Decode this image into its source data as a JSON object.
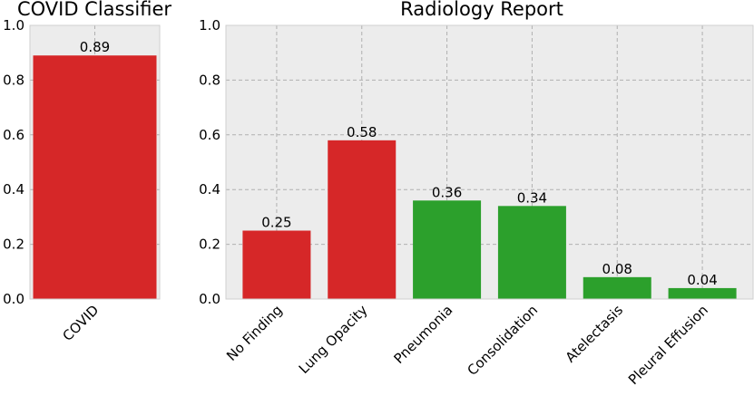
{
  "chart_data": [
    {
      "type": "bar",
      "title": "COVID Classifier",
      "categories": [
        "COVID"
      ],
      "values": [
        0.89
      ],
      "value_labels": [
        "0.89"
      ],
      "bar_colors": [
        "#d62728"
      ],
      "ylim": [
        0,
        1.0
      ],
      "yticks": [
        "0.0",
        "0.2",
        "0.4",
        "0.6",
        "0.8",
        "1.0"
      ],
      "grid": true
    },
    {
      "type": "bar",
      "title": "Radiology Report",
      "categories": [
        "No Finding",
        "Lung Opacity",
        "Pneumonia",
        "Consolidation",
        "Atelectasis",
        "Pleural Effusion"
      ],
      "values": [
        0.25,
        0.58,
        0.36,
        0.34,
        0.08,
        0.04
      ],
      "value_labels": [
        "0.25",
        "0.58",
        "0.36",
        "0.34",
        "0.08",
        "0.04"
      ],
      "bar_colors": [
        "#d62728",
        "#d62728",
        "#2ca02c",
        "#2ca02c",
        "#2ca02c",
        "#2ca02c"
      ],
      "ylim": [
        0,
        1.0
      ],
      "yticks": [
        "0.0",
        "0.2",
        "0.4",
        "0.6",
        "0.8",
        "1.0"
      ],
      "grid": true
    }
  ]
}
